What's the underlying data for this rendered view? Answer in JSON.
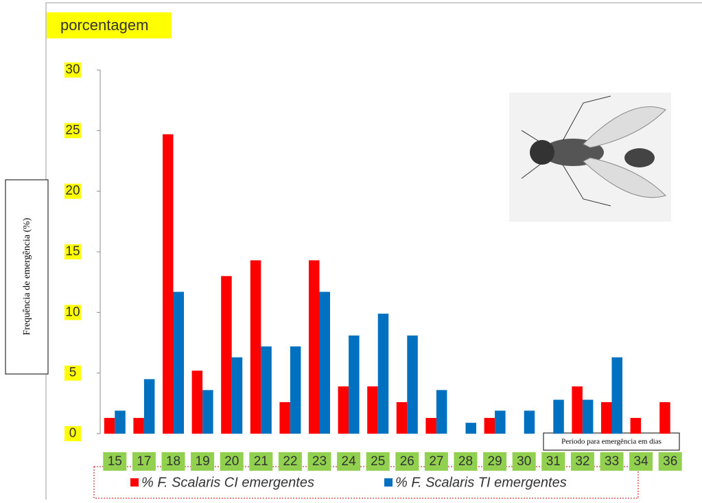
{
  "chart_data": {
    "type": "bar",
    "title": "porcentagem",
    "y_label": "Frequência de emergência (%)",
    "x_label": "Período para emergência em dias",
    "categories": [
      "15",
      "17",
      "18",
      "19",
      "20",
      "21",
      "22",
      "23",
      "24",
      "25",
      "26",
      "27",
      "28",
      "29",
      "30",
      "31",
      "32",
      "33",
      "34",
      "36"
    ],
    "series": [
      {
        "name": "% F. Scalaris CI emergentes",
        "color": "#ff0000",
        "values": [
          1.3,
          1.3,
          24.7,
          5.2,
          13,
          14.3,
          2.6,
          14.3,
          3.9,
          3.9,
          2.6,
          1.3,
          0,
          1.3,
          0,
          0,
          3.9,
          2.6,
          1.3,
          2.6
        ]
      },
      {
        "name": "% F. Scalaris TI emergentes",
        "color": "#0070c0",
        "values": [
          1.9,
          4.5,
          11.7,
          3.6,
          6.3,
          7.2,
          7.2,
          11.7,
          8.1,
          9.9,
          8.1,
          3.6,
          0.9,
          1.9,
          1.9,
          2.8,
          2.8,
          6.3,
          0,
          0
        ]
      }
    ],
    "ylim": [
      0,
      30
    ],
    "yticks": [
      0,
      5,
      10,
      15,
      20,
      25,
      30
    ]
  }
}
